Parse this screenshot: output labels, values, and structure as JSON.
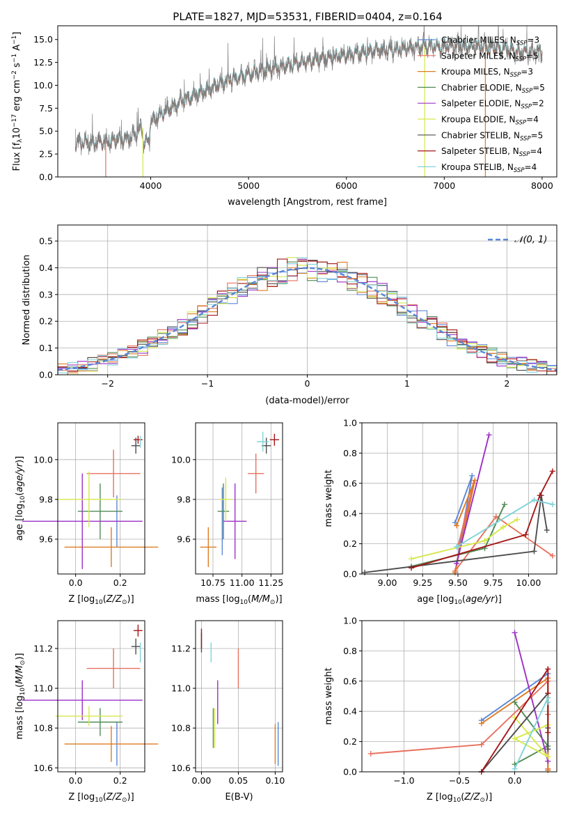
{
  "chart_data": [
    {
      "id": "spectrum",
      "type": "line",
      "title": "PLATE=1827, MJD=53531, FIBERID=0404, z=0.164",
      "xlabel": "wavelength [Angstrom, rest frame]",
      "ylabel": "Flux [fλ10⁻¹⁷ erg cm⁻² s⁻¹ A⁻¹]",
      "xlim": [
        3050,
        8150
      ],
      "ylim": [
        0,
        16.5
      ],
      "xticks": [
        4000,
        5000,
        6000,
        7000,
        8000
      ],
      "yticks": [
        0.0,
        2.5,
        5.0,
        7.5,
        10.0,
        12.5,
        15.0
      ],
      "grid": false,
      "legend_position": "top-right",
      "data_range": [
        3230,
        8000
      ],
      "observed": {
        "color": "#808080",
        "noise": 0.9
      },
      "continuum": [
        [
          3230,
          3.7
        ],
        [
          3500,
          3.8
        ],
        [
          3650,
          4.0
        ],
        [
          3800,
          4.4
        ],
        [
          3950,
          5.6
        ],
        [
          4100,
          6.8
        ],
        [
          4300,
          8.2
        ],
        [
          4500,
          9.2
        ],
        [
          4800,
          10.6
        ],
        [
          5100,
          11.5
        ],
        [
          5400,
          12.2
        ],
        [
          5700,
          12.8
        ],
        [
          6000,
          13.3
        ],
        [
          6300,
          13.8
        ],
        [
          6600,
          14.0
        ],
        [
          6900,
          14.3
        ],
        [
          7200,
          14.3
        ],
        [
          7500,
          14.2
        ],
        [
          7800,
          13.6
        ],
        [
          8000,
          13.8
        ]
      ],
      "series": [
        {
          "name": "Chabrier MILES, N_SSP=3",
          "label": "Chabrier MILES, N",
          "sub": "SSP",
          "n": "3",
          "color": "#5b87d6"
        },
        {
          "name": "Salpeter MILES, N_SSP=5",
          "label": "Salpeter MILES, N",
          "sub": "SSP",
          "n": "5",
          "color": "#e7705e"
        },
        {
          "name": "Kroupa MILES, N_SSP=3",
          "label": "Kroupa MILES, N",
          "sub": "SSP",
          "n": "3",
          "color": "#de7b22"
        },
        {
          "name": "Chabrier ELODIE, N_SSP=5",
          "label": "Chabrier ELODIE, N",
          "sub": "SSP",
          "n": "5",
          "color": "#4f8b55"
        },
        {
          "name": "Salpeter ELODIE, N_SSP=2",
          "label": "Salpeter ELODIE, N",
          "sub": "SSP",
          "n": "2",
          "color": "#9b30c6"
        },
        {
          "name": "Kroupa ELODIE, N_SSP=4",
          "label": "Kroupa ELODIE, N",
          "sub": "SSP",
          "n": "4",
          "color": "#d6e84a"
        },
        {
          "name": "Chabrier STELIB, N_SSP=5",
          "label": "Chabrier STELIB, N",
          "sub": "SSP",
          "n": "5",
          "color": "#4d4d4d"
        },
        {
          "name": "Salpeter STELIB, N_SSP=4",
          "label": "Salpeter STELIB, N",
          "sub": "SSP",
          "n": "4",
          "color": "#a51618"
        },
        {
          "name": "Kroupa STELIB, N_SSP=4",
          "label": "Kroupa STELIB, N",
          "sub": "SSP",
          "n": "4",
          "color": "#7fd3d9"
        }
      ],
      "drops": [
        {
          "x": 3540,
          "color": "#e7705e"
        },
        {
          "x": 3920,
          "color": "#d6e84a"
        },
        {
          "x": 6800,
          "color": "#d6e84a"
        },
        {
          "x": 7420,
          "color": "#de7b22"
        }
      ]
    },
    {
      "id": "residuals",
      "type": "histogram",
      "xlabel": "(data-model)/error",
      "ylabel": "Normed distribution",
      "xlim": [
        -2.5,
        2.5
      ],
      "ylim": [
        0,
        0.56
      ],
      "xticks": [
        -2,
        -1,
        0,
        1,
        2
      ],
      "xtick_labels": [
        "−2",
        "−1",
        "0",
        "1",
        "2"
      ],
      "yticks": [
        0.0,
        0.1,
        0.2,
        0.3,
        0.4,
        0.5
      ],
      "grid": true,
      "legend_position": "top-right",
      "bin_edges_range": [
        -2.5,
        2.5
      ],
      "n_bins": 50,
      "reference": {
        "name": "𝒩(0, 1)",
        "mu": 0,
        "sigma": 1,
        "color": "#5b87d6",
        "style": "dashed"
      },
      "series_colors": [
        "#5b87d6",
        "#e7705e",
        "#de7b22",
        "#4f8b55",
        "#9b30c6",
        "#d6e84a",
        "#4d4d4d",
        "#a51618",
        "#7fd3d9"
      ],
      "spread": 0.04
    },
    {
      "id": "age-vs-Z",
      "type": "errorbar",
      "xlabel": "Z [log₁₀(Z/Z⊙)]",
      "ylabel": "age  [log₁₀(age/yr)]",
      "xlim": [
        -0.08,
        0.31
      ],
      "ylim": [
        9.425,
        10.185
      ],
      "xticks": [
        0.0,
        0.2
      ],
      "xtick_labels": [
        "0.0",
        "0.2"
      ],
      "yticks": [
        9.6,
        9.8,
        10.0
      ],
      "grid": true,
      "points": [
        {
          "color": "#5b87d6",
          "x": 0.185,
          "xerr": 0.0,
          "y": 9.69,
          "yerr": 0.13
        },
        {
          "color": "#e7705e",
          "x": 0.17,
          "xerr": 0.12,
          "y": 9.93,
          "yerr": 0.12
        },
        {
          "color": "#de7b22",
          "x": 0.16,
          "xerr": 0.21,
          "y": 9.56,
          "yerr": 0.1
        },
        {
          "color": "#4f8b55",
          "x": 0.11,
          "xerr": 0.1,
          "y": 9.74,
          "yerr": 0.14
        },
        {
          "color": "#9b30c6",
          "x": 0.03,
          "xerr": 0.27,
          "y": 9.69,
          "yerr": 0.24
        },
        {
          "color": "#d6e84a",
          "x": 0.06,
          "xerr": 0.15,
          "y": 9.8,
          "yerr": 0.14
        },
        {
          "color": "#4d4d4d",
          "x": 0.27,
          "xerr": 0.02,
          "y": 10.07,
          "yerr": 0.04
        },
        {
          "color": "#a51618",
          "x": 0.28,
          "xerr": 0.02,
          "y": 10.1,
          "yerr": 0.02
        },
        {
          "color": "#7fd3d9",
          "x": 0.29,
          "xerr": 0.0,
          "y": 10.09,
          "yerr": 0.03
        }
      ]
    },
    {
      "id": "age-vs-mass",
      "type": "errorbar",
      "xlabel": "mass [log₁₀(M/M⊙)]",
      "ylabel": "",
      "xlim": [
        10.6,
        11.35
      ],
      "ylim": [
        9.425,
        10.185
      ],
      "xticks": [
        10.75,
        11.0,
        11.25
      ],
      "xtick_labels": [
        "10.75",
        "11.00",
        "11.25"
      ],
      "yticks": [
        9.6,
        9.8,
        10.0
      ],
      "grid": true,
      "points": [
        {
          "color": "#5b87d6",
          "x": 10.83,
          "xerr": 0.0,
          "y": 9.69,
          "yerr": 0.17
        },
        {
          "color": "#e7705e",
          "x": 11.12,
          "xerr": 0.07,
          "y": 9.93,
          "yerr": 0.1
        },
        {
          "color": "#de7b22",
          "x": 10.71,
          "xerr": 0.07,
          "y": 9.56,
          "yerr": 0.1
        },
        {
          "color": "#4f8b55",
          "x": 10.84,
          "xerr": 0.05,
          "y": 9.74,
          "yerr": 0.14
        },
        {
          "color": "#9b30c6",
          "x": 10.94,
          "xerr": 0.1,
          "y": 9.69,
          "yerr": 0.19
        },
        {
          "color": "#d6e84a",
          "x": 10.86,
          "xerr": 0.05,
          "y": 9.8,
          "yerr": 0.11
        },
        {
          "color": "#4d4d4d",
          "x": 11.21,
          "xerr": 0.04,
          "y": 10.07,
          "yerr": 0.04
        },
        {
          "color": "#a51618",
          "x": 11.28,
          "xerr": 0.04,
          "y": 10.1,
          "yerr": 0.03
        },
        {
          "color": "#7fd3d9",
          "x": 11.18,
          "xerr": 0.05,
          "y": 10.09,
          "yerr": 0.05
        }
      ]
    },
    {
      "id": "massweight-vs-age",
      "type": "line",
      "xlabel": "age  [log₁₀(age/yr)]",
      "ylabel": "mass weight",
      "xlim": [
        8.82,
        10.2
      ],
      "ylim": [
        0,
        1.0
      ],
      "xticks": [
        9.0,
        9.25,
        9.5,
        9.75,
        10.0
      ],
      "xtick_labels": [
        "9.00",
        "9.25",
        "9.50",
        "9.75",
        "10.00"
      ],
      "yticks": [
        0.0,
        0.2,
        0.4,
        0.6,
        0.8,
        1.0
      ],
      "grid": true,
      "series": [
        {
          "color": "#5b87d6",
          "x": [
            9.48,
            9.6,
            9.48
          ],
          "y": [
            0.34,
            0.65,
            0.01
          ]
        },
        {
          "color": "#e7705e",
          "x": [
            9.5,
            9.61,
            9.48,
            9.77,
            10.17
          ],
          "y": [
            0.18,
            0.6,
            0.02,
            0.38,
            0.12
          ]
        },
        {
          "color": "#de7b22",
          "x": [
            9.49,
            9.62,
            9.48
          ],
          "y": [
            0.32,
            0.62,
            0.01
          ]
        },
        {
          "color": "#4f8b55",
          "x": [
            9.17,
            9.69,
            9.83
          ],
          "y": [
            0.05,
            0.17,
            0.46
          ]
        },
        {
          "color": "#9b30c6",
          "x": [
            9.49,
            9.72
          ],
          "y": [
            0.07,
            0.92
          ]
        },
        {
          "color": "#d6e84a",
          "x": [
            9.17,
            9.69,
            9.82,
            9.92
          ],
          "y": [
            0.1,
            0.22,
            0.31,
            0.36
          ]
        },
        {
          "color": "#4d4d4d",
          "x": [
            8.84,
            10.04,
            10.09,
            10.13
          ],
          "y": [
            0.01,
            0.15,
            0.52,
            0.29
          ]
        },
        {
          "color": "#a51618",
          "x": [
            9.17,
            9.98,
            10.08,
            10.17
          ],
          "y": [
            0.04,
            0.26,
            0.52,
            0.68
          ]
        },
        {
          "color": "#7fd3d9",
          "x": [
            9.49,
            10.04,
            10.17
          ],
          "y": [
            0.18,
            0.49,
            0.46
          ]
        }
      ]
    },
    {
      "id": "mass-vs-Z",
      "type": "errorbar",
      "xlabel": "Z [log₁₀(Z/Z⊙)]",
      "ylabel": "mass [log₁₀(M/M⊙)]",
      "xlim": [
        -0.08,
        0.31
      ],
      "ylim": [
        10.58,
        11.34
      ],
      "xticks": [
        0.0,
        0.2
      ],
      "xtick_labels": [
        "0.0",
        "0.2"
      ],
      "yticks": [
        10.6,
        10.8,
        11.0,
        11.2
      ],
      "grid": true,
      "points": [
        {
          "color": "#5b87d6",
          "x": 0.185,
          "xerr": 0.0,
          "y": 10.72,
          "yerr": 0.11
        },
        {
          "color": "#e7705e",
          "x": 0.17,
          "xerr": 0.12,
          "y": 11.1,
          "yerr": 0.1
        },
        {
          "color": "#de7b22",
          "x": 0.16,
          "xerr": 0.21,
          "y": 10.72,
          "yerr": 0.09
        },
        {
          "color": "#4f8b55",
          "x": 0.11,
          "xerr": 0.1,
          "y": 10.83,
          "yerr": 0.07
        },
        {
          "color": "#9b30c6",
          "x": 0.03,
          "xerr": 0.27,
          "y": 10.94,
          "yerr": 0.1
        },
        {
          "color": "#d6e84a",
          "x": 0.06,
          "xerr": 0.15,
          "y": 10.86,
          "yerr": 0.05
        },
        {
          "color": "#4d4d4d",
          "x": 0.27,
          "xerr": 0.02,
          "y": 11.21,
          "yerr": 0.04
        },
        {
          "color": "#a51618",
          "x": 0.28,
          "xerr": 0.02,
          "y": 11.29,
          "yerr": 0.03
        },
        {
          "color": "#7fd3d9",
          "x": 0.29,
          "xerr": 0.0,
          "y": 11.18,
          "yerr": 0.05
        }
      ]
    },
    {
      "id": "mass-vs-ebv",
      "type": "errorbar",
      "xlabel": "E(B-V)",
      "ylabel": "",
      "xlim": [
        -0.008,
        0.11
      ],
      "ylim": [
        10.58,
        11.34
      ],
      "xticks": [
        0.0,
        0.05,
        0.1
      ],
      "xtick_labels": [
        "0.00",
        "0.05",
        "0.10"
      ],
      "yticks": [
        10.6,
        10.8,
        11.0,
        11.2
      ],
      "grid": true,
      "points": [
        {
          "color": "#5b87d6",
          "x": 0.104,
          "xerr": 0.0,
          "y": 10.72,
          "yerr": 0.11
        },
        {
          "color": "#e7705e",
          "x": 0.05,
          "xerr": 0.0,
          "y": 11.1,
          "yerr": 0.1
        },
        {
          "color": "#de7b22",
          "x": 0.1,
          "xerr": 0.0,
          "y": 10.72,
          "yerr": 0.1
        },
        {
          "color": "#4f8b55",
          "x": 0.016,
          "xerr": 0.0,
          "y": 10.8,
          "yerr": 0.1
        },
        {
          "color": "#9b30c6",
          "x": 0.022,
          "xerr": 0.0,
          "y": 10.93,
          "yerr": 0.11
        },
        {
          "color": "#d6e84a",
          "x": 0.018,
          "xerr": 0.0,
          "y": 10.8,
          "yerr": 0.1
        },
        {
          "color": "#4d4d4d",
          "x": 0.0,
          "xerr": 0.0,
          "y": 11.23,
          "yerr": 0.05
        },
        {
          "color": "#a51618",
          "x": 0.0,
          "xerr": 0.0,
          "y": 11.25,
          "yerr": 0.05
        },
        {
          "color": "#7fd3d9",
          "x": 0.013,
          "xerr": 0.0,
          "y": 11.18,
          "yerr": 0.05
        }
      ]
    },
    {
      "id": "massweight-vs-Z",
      "type": "line",
      "xlabel": "Z [log₁₀(Z/Z⊙)]",
      "ylabel": "mass weight",
      "xlim": [
        -1.38,
        0.38
      ],
      "ylim": [
        0,
        1.0
      ],
      "xticks": [
        -1.0,
        -0.5,
        0.0
      ],
      "xtick_labels": [
        "−1.0",
        "−0.5",
        "0.0"
      ],
      "yticks": [
        0.0,
        0.2,
        0.4,
        0.6,
        0.8,
        1.0
      ],
      "grid": true,
      "series": [
        {
          "color": "#5b87d6",
          "x": [
            -0.3,
            0.3,
            0.3
          ],
          "y": [
            0.34,
            0.65,
            0.01
          ]
        },
        {
          "color": "#e7705e",
          "x": [
            -1.3,
            -0.3,
            0.3,
            0.3,
            0.3
          ],
          "y": [
            0.12,
            0.18,
            0.6,
            0.02,
            0.38
          ]
        },
        {
          "color": "#de7b22",
          "x": [
            -0.3,
            0.3,
            0.3
          ],
          "y": [
            0.32,
            0.62,
            0.01
          ]
        },
        {
          "color": "#4f8b55",
          "x": [
            0.0,
            0.3,
            0.0
          ],
          "y": [
            0.05,
            0.17,
            0.46
          ]
        },
        {
          "color": "#9b30c6",
          "x": [
            0.0,
            0.3
          ],
          "y": [
            0.92,
            0.07
          ]
        },
        {
          "color": "#d6e84a",
          "x": [
            0.0,
            0.3,
            0.0,
            0.3
          ],
          "y": [
            0.36,
            0.1,
            0.22,
            0.31
          ]
        },
        {
          "color": "#4d4d4d",
          "x": [
            -0.3,
            0.3,
            0.3,
            0.3
          ],
          "y": [
            0.0,
            0.52,
            0.29,
            0.15
          ]
        },
        {
          "color": "#a51618",
          "x": [
            -0.3,
            0.3,
            0.3,
            0.3
          ],
          "y": [
            0.0,
            0.68,
            0.52,
            0.26
          ]
        },
        {
          "color": "#7fd3d9",
          "x": [
            0.0,
            0.3,
            0.3
          ],
          "y": [
            0.02,
            0.49,
            0.46
          ]
        }
      ]
    }
  ]
}
